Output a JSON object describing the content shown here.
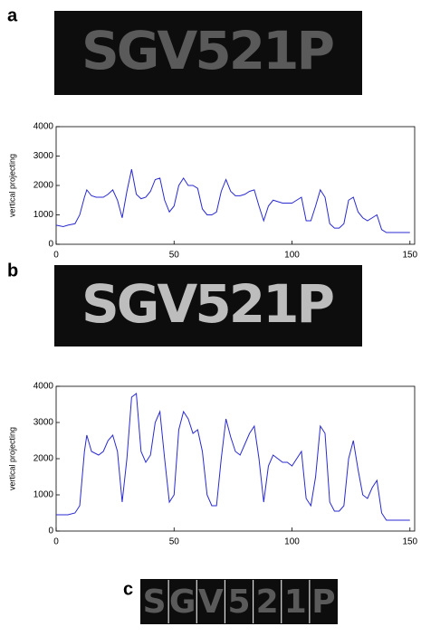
{
  "panels": [
    {
      "label": "a",
      "plate": "SGV521P"
    },
    {
      "label": "b",
      "plate": "SGV521P"
    },
    {
      "label": "c",
      "plate_characters": [
        "S",
        "G",
        "V",
        "5",
        "2",
        "1",
        "P"
      ]
    }
  ],
  "chart_data": [
    {
      "type": "line",
      "ylabel": "vertical projecting",
      "color": "#2a2ad0",
      "x": [
        0,
        3,
        5,
        8,
        10,
        12,
        13,
        15,
        17,
        20,
        22,
        24,
        26,
        28,
        30,
        32,
        34,
        36,
        38,
        40,
        42,
        44,
        46,
        48,
        50,
        52,
        54,
        56,
        58,
        60,
        62,
        64,
        66,
        68,
        70,
        72,
        74,
        76,
        78,
        80,
        82,
        84,
        86,
        88,
        90,
        92,
        94,
        96,
        98,
        100,
        102,
        104,
        106,
        108,
        110,
        112,
        114,
        116,
        118,
        120,
        122,
        124,
        126,
        128,
        130,
        132,
        134,
        136,
        138,
        140,
        145,
        150
      ],
      "values": [
        650,
        600,
        650,
        700,
        1000,
        1600,
        1850,
        1650,
        1600,
        1600,
        1700,
        1850,
        1500,
        900,
        1800,
        2550,
        1700,
        1550,
        1600,
        1800,
        2200,
        2250,
        1500,
        1100,
        1300,
        2000,
        2250,
        2000,
        2000,
        1900,
        1200,
        1000,
        1000,
        1100,
        1800,
        2200,
        1800,
        1650,
        1650,
        1700,
        1800,
        1850,
        1300,
        800,
        1300,
        1500,
        1450,
        1400,
        1400,
        1400,
        1500,
        1600,
        800,
        800,
        1300,
        1850,
        1600,
        700,
        550,
        550,
        700,
        1500,
        1600,
        1100,
        900,
        800,
        900,
        1000,
        500,
        400,
        400,
        400
      ],
      "xlim": [
        0,
        152
      ],
      "ylim": [
        0,
        4000
      ],
      "xticks": [
        0,
        50,
        100,
        150
      ],
      "yticks": [
        0,
        1000,
        2000,
        3000,
        4000
      ]
    },
    {
      "type": "line",
      "ylabel": "vertical projecting",
      "color": "#2a2ad0",
      "x": [
        0,
        5,
        8,
        10,
        12,
        13,
        15,
        18,
        20,
        22,
        24,
        26,
        28,
        30,
        32,
        34,
        36,
        38,
        40,
        42,
        44,
        46,
        48,
        50,
        52,
        54,
        56,
        58,
        60,
        62,
        64,
        66,
        68,
        70,
        72,
        74,
        76,
        78,
        80,
        82,
        84,
        86,
        88,
        90,
        92,
        94,
        96,
        98,
        100,
        102,
        104,
        106,
        108,
        110,
        112,
        114,
        116,
        118,
        120,
        122,
        124,
        126,
        128,
        130,
        132,
        134,
        136,
        138,
        140,
        145,
        150
      ],
      "values": [
        450,
        450,
        500,
        700,
        2200,
        2650,
        2200,
        2100,
        2200,
        2500,
        2650,
        2200,
        800,
        2000,
        3700,
        3800,
        2200,
        1900,
        2100,
        3000,
        3300,
        2000,
        800,
        1000,
        2800,
        3300,
        3100,
        2700,
        2800,
        2200,
        1000,
        700,
        700,
        2000,
        3100,
        2600,
        2200,
        2100,
        2400,
        2700,
        2900,
        2000,
        800,
        1800,
        2100,
        2000,
        1900,
        1900,
        1800,
        2000,
        2200,
        900,
        700,
        1500,
        2900,
        2700,
        800,
        550,
        550,
        700,
        2000,
        2500,
        1700,
        1000,
        900,
        1200,
        1400,
        500,
        300,
        300,
        300
      ],
      "xlim": [
        0,
        152
      ],
      "ylim": [
        0,
        4000
      ],
      "xticks": [
        0,
        50,
        100,
        150
      ],
      "yticks": [
        0,
        1000,
        2000,
        3000,
        4000
      ]
    }
  ]
}
